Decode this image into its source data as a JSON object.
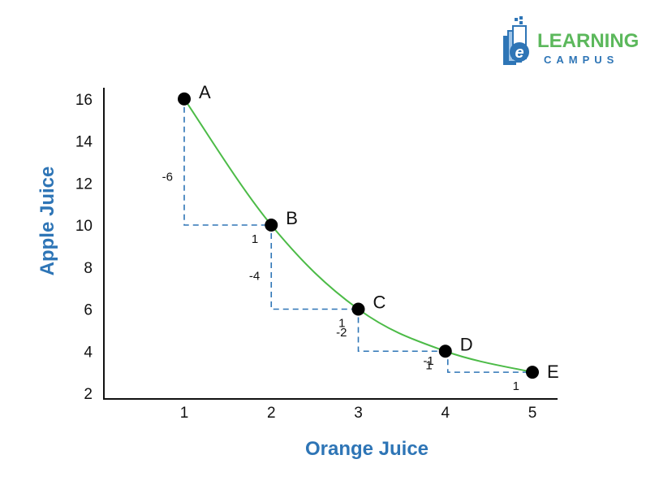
{
  "logo": {
    "word1": "LEARNING",
    "word2": "CAMPUS",
    "badge_letter": "e",
    "colors": {
      "green": "#5cb85c",
      "blue": "#2e75b6"
    }
  },
  "chart_data": {
    "type": "line",
    "title": "",
    "xlabel": "Orange Juice",
    "ylabel": "Apple Juice",
    "x_ticks": [
      1,
      2,
      3,
      4,
      5
    ],
    "y_ticks": [
      2,
      4,
      6,
      8,
      10,
      12,
      14,
      16
    ],
    "xlim": [
      0,
      5.2
    ],
    "ylim": [
      1.5,
      16.5
    ],
    "grid": false,
    "line_color": "#4cbb47",
    "step_color": "#2e75b6",
    "axis_title_color": "#2e75b6",
    "points": [
      {
        "label": "A",
        "x": 1,
        "y": 16
      },
      {
        "label": "B",
        "x": 2,
        "y": 10
      },
      {
        "label": "C",
        "x": 3,
        "y": 6
      },
      {
        "label": "D",
        "x": 4,
        "y": 4
      },
      {
        "label": "E",
        "x": 5,
        "y": 3
      }
    ],
    "steps": [
      {
        "from": "A",
        "to": "B",
        "dx": 1,
        "dy": -6,
        "dx_label": "1",
        "dy_label": "-6"
      },
      {
        "from": "B",
        "to": "C",
        "dx": 1,
        "dy": -4,
        "dx_label": "1",
        "dy_label": "-4"
      },
      {
        "from": "C",
        "to": "D",
        "dx": 1,
        "dy": -2,
        "dx_label": "1",
        "dy_label": "-2"
      },
      {
        "from": "D",
        "to": "E",
        "dx": 1,
        "dy": -1,
        "dx_label": "1",
        "dy_label": "-1"
      }
    ]
  }
}
